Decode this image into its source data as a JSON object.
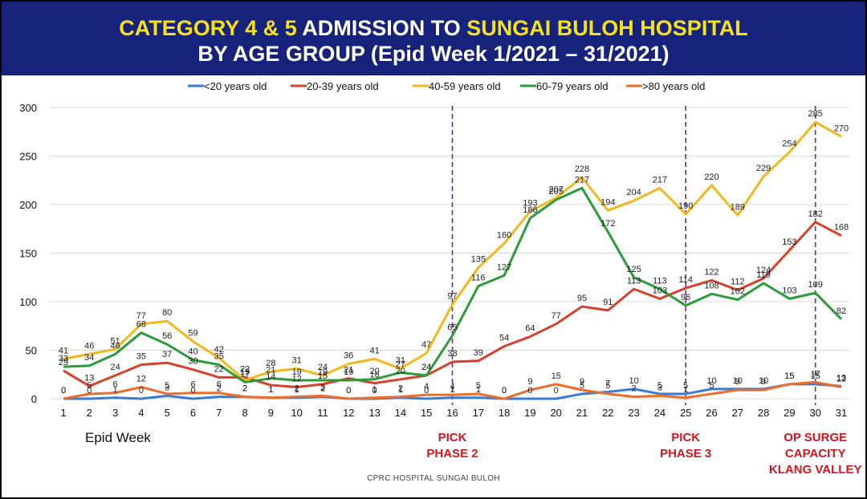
{
  "title": {
    "line1_part1": "CATEGORY 4 & 5",
    "line1_part2": " ADMISSION TO ",
    "line1_part3": "SUNGAI BULOH HOSPITAL",
    "line2": "BY AGE GROUP (Epid Week 1/2021  –  31/2021)"
  },
  "colors": {
    "banner": "#17237a",
    "title_highlight": "#f5e21c",
    "annotation": "#d6141c",
    "phase_line": "#6a2c91"
  },
  "xlabel": "Epid Week",
  "credit": "CPRC HOSPITAL SUNGAI BULOH",
  "annotations": [
    {
      "week": 16,
      "lines": [
        "PICK",
        "PHASE 2"
      ]
    },
    {
      "week": 25,
      "lines": [
        "PICK",
        "PHASE 3"
      ]
    },
    {
      "week": 30,
      "lines": [
        "OP SURGE",
        "CAPACITY",
        "KLANG VALLEY"
      ]
    }
  ],
  "chart_data": {
    "type": "line",
    "x": [
      1,
      2,
      3,
      4,
      5,
      6,
      7,
      8,
      9,
      10,
      11,
      12,
      13,
      14,
      15,
      16,
      17,
      18,
      19,
      20,
      21,
      22,
      23,
      24,
      25,
      26,
      27,
      28,
      29,
      30,
      31
    ],
    "ylim": [
      0,
      300
    ],
    "yticks": [
      0,
      50,
      100,
      150,
      200,
      250,
      300
    ],
    "grid": true,
    "legend_position": "top",
    "series": [
      {
        "name": "<20 years old",
        "color": "#3a7bd5",
        "values": [
          0,
          0,
          1,
          0,
          3,
          0,
          2,
          2,
          1,
          1,
          2,
          0,
          0,
          1,
          0,
          1,
          1,
          0,
          0,
          0,
          5,
          7,
          10,
          5,
          5,
          10,
          10,
          10,
          15,
          15,
          13
        ]
      },
      {
        "name": "20-39 years old",
        "color": "#d9402b",
        "values": [
          29,
          13,
          24,
          35,
          37,
          30,
          22,
          22,
          14,
          12,
          15,
          21,
          16,
          20,
          24,
          38,
          39,
          54,
          64,
          77,
          95,
          91,
          113,
          103,
          114,
          122,
          112,
          124,
          153,
          182,
          168
        ]
      },
      {
        "name": "40-59 years old",
        "color": "#f2b81c",
        "values": [
          41,
          46,
          51,
          77,
          80,
          59,
          42,
          19,
          28,
          31,
          24,
          36,
          41,
          31,
          47,
          97,
          135,
          160,
          193,
          207,
          228,
          194,
          204,
          217,
          190,
          220,
          189,
          229,
          254,
          285,
          270
        ]
      },
      {
        "name": "60-79 years old",
        "color": "#2c9b3a",
        "values": [
          33,
          34,
          46,
          68,
          56,
          40,
          35,
          17,
          21,
          19,
          19,
          19,
          20,
          27,
          24,
          65,
          116,
          127,
          186,
          205,
          217,
          172,
          125,
          113,
          96,
          108,
          102,
          119,
          103,
          109,
          82
        ]
      },
      {
        "name": ">80 years old",
        "color": "#ef6c2a",
        "values": [
          0,
          5,
          6,
          12,
          5,
          6,
          6,
          2,
          1,
          2,
          3,
          0,
          1,
          2,
          4,
          4,
          5,
          0,
          9,
          15,
          9,
          5,
          2,
          3,
          1,
          5,
          9,
          9,
          15,
          17,
          12
        ]
      }
    ]
  }
}
